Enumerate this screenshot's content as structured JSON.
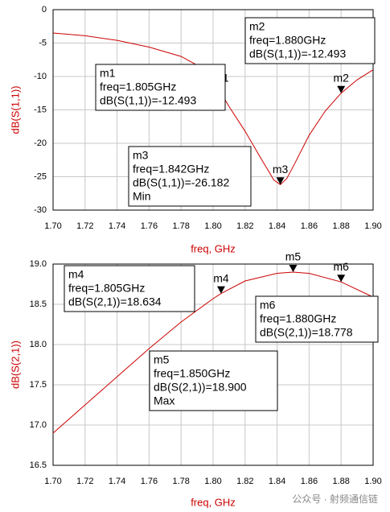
{
  "chart_data": [
    {
      "type": "line",
      "xlabel": "freq, GHz",
      "ylabel": "dB(S(1,1))",
      "grid": true,
      "color": "#cc0000",
      "xlim": [
        1.7,
        1.9
      ],
      "ylim": [
        -30,
        0
      ],
      "xticks": [
        {
          "value": 1.7,
          "label": "1.70"
        },
        1.72,
        1.74,
        1.76,
        1.78,
        {
          "value": 1.8,
          "label": "1.80"
        },
        1.82,
        1.84,
        1.86,
        1.88,
        {
          "value": 1.9,
          "label": "1.90"
        }
      ],
      "yticks": [
        0,
        -5,
        -10,
        -15,
        -20,
        -25,
        -30
      ],
      "series": [
        {
          "name": "dB(S(1,1))",
          "color": "#cc0000",
          "x": [
            1.7,
            1.72,
            1.74,
            1.76,
            1.78,
            1.79,
            1.8,
            1.805,
            1.81,
            1.82,
            1.83,
            1.838,
            1.842,
            1.846,
            1.85,
            1.86,
            1.87,
            1.88,
            1.89,
            1.9
          ],
          "values": [
            -3.5,
            -3.9,
            -4.6,
            -5.6,
            -7.0,
            -8.3,
            -10.4,
            -12.493,
            -14.5,
            -18.2,
            -22.3,
            -25.5,
            -26.182,
            -25.3,
            -23.5,
            -18.8,
            -15.2,
            -12.493,
            -10.5,
            -9.0
          ]
        }
      ],
      "markers": [
        {
          "name": "m1",
          "x": 1.805,
          "y": -12.493,
          "lines": [
            "freq=1.805GHz",
            "dB(S(1,1))=-12.493"
          ]
        },
        {
          "name": "m2",
          "x": 1.88,
          "y": -12.493,
          "lines": [
            "freq=1.880GHz",
            "dB(S(1,1))=-12.493"
          ]
        },
        {
          "name": "m3",
          "x": 1.842,
          "y": -26.182,
          "lines": [
            "freq=1.842GHz",
            "dB(S(1,1))=-26.182",
            "Min"
          ]
        }
      ]
    },
    {
      "type": "line",
      "xlabel": "freq, GHz",
      "ylabel": "dB(S(2,1))",
      "grid": true,
      "color": "#cc0000",
      "xlim": [
        1.7,
        1.9
      ],
      "ylim": [
        16.5,
        19
      ],
      "xticks": [
        {
          "value": 1.7,
          "label": "1.70"
        },
        1.72,
        1.74,
        1.76,
        1.78,
        {
          "value": 1.8,
          "label": "1.80"
        },
        1.82,
        1.84,
        1.86,
        1.88,
        {
          "value": 1.9,
          "label": "1.90"
        }
      ],
      "yticks": [
        {
          "value": 19,
          "label": "19.0"
        },
        18.5,
        {
          "value": 18,
          "label": "18.0"
        },
        17.5,
        {
          "value": 17,
          "label": "17.0"
        },
        16.5
      ],
      "series": [
        {
          "name": "dB(S(2,1))",
          "color": "#cc0000",
          "x": [
            1.7,
            1.72,
            1.74,
            1.76,
            1.78,
            1.8,
            1.805,
            1.82,
            1.84,
            1.85,
            1.86,
            1.88,
            1.9
          ],
          "values": [
            16.9,
            17.25,
            17.6,
            17.95,
            18.28,
            18.57,
            18.634,
            18.79,
            18.885,
            18.9,
            18.885,
            18.778,
            18.59
          ]
        }
      ],
      "markers": [
        {
          "name": "m4",
          "x": 1.805,
          "y": 18.634,
          "lines": [
            "freq=1.805GHz",
            "dB(S(2,1))=18.634"
          ]
        },
        {
          "name": "m5",
          "x": 1.85,
          "y": 18.9,
          "lines": [
            "freq=1.850GHz",
            "dB(S(2,1))=18.900",
            "Max"
          ]
        },
        {
          "name": "m6",
          "x": 1.88,
          "y": 18.778,
          "lines": [
            "freq=1.880GHz",
            "dB(S(2,1))=18.778"
          ]
        }
      ]
    }
  ],
  "watermark": "公众号 · 射频通信链"
}
